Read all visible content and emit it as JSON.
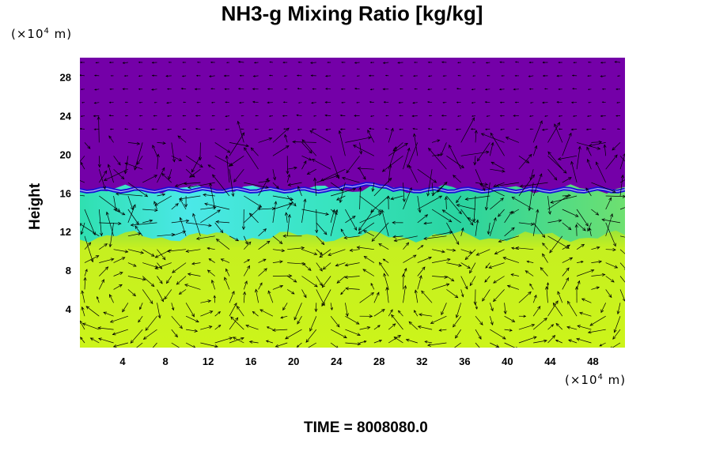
{
  "chart_data": {
    "type": "heatmap",
    "title": "NH3-g Mixing Ratio [kg/kg]",
    "ylabel": "Height",
    "xunit": "(×10",
    "xunit_exp": "4",
    "xunit_tail": " m)",
    "yunit": "(×10",
    "yunit_exp": "4",
    "yunit_tail": " m)",
    "x_ticks": [
      4,
      8,
      12,
      16,
      20,
      24,
      28,
      32,
      36,
      40,
      44,
      48
    ],
    "y_ticks": [
      4,
      8,
      12,
      16,
      20,
      24,
      28
    ],
    "xlim": [
      0,
      51
    ],
    "ylim": [
      0,
      30
    ],
    "time_label": "TIME = 8008080.0",
    "field_layers": [
      {
        "name": "upper",
        "y_range": [
          17,
          30
        ],
        "color": "#7400a8"
      },
      {
        "name": "transition",
        "y_range": [
          16,
          17
        ],
        "color": "#1a10d8"
      },
      {
        "name": "middle",
        "y_range": [
          12,
          16
        ],
        "color": "#2ee6a8"
      },
      {
        "name": "lower",
        "y_range": [
          0,
          12
        ],
        "color": "#c8f21a"
      }
    ],
    "vector_overlay": true
  }
}
